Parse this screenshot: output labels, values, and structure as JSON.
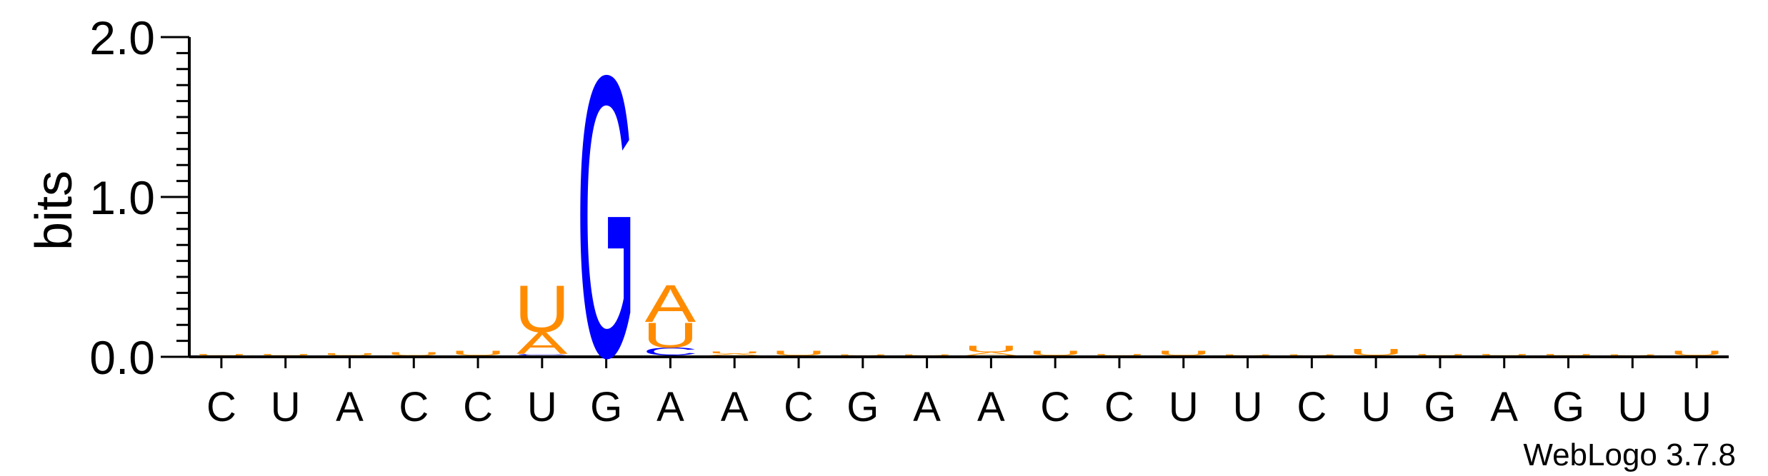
{
  "chart_data": {
    "type": "sequence_logo",
    "ylabel": "bits",
    "ylim": [
      0,
      2.0
    ],
    "yticks": [
      "0.0",
      "1.0",
      "2.0"
    ],
    "positions": [
      "C",
      "U",
      "A",
      "C",
      "C",
      "U",
      "G",
      "A",
      "A",
      "C",
      "G",
      "A",
      "A",
      "C",
      "C",
      "U",
      "U",
      "C",
      "U",
      "G",
      "A",
      "G",
      "U",
      "U"
    ],
    "stacks": [
      {
        "letters": [
          {
            "l": "U",
            "h": 0.008
          }
        ]
      },
      {
        "letters": [
          {
            "l": "U",
            "h": 0.01
          }
        ]
      },
      {
        "letters": [
          {
            "l": "U",
            "h": 0.015
          }
        ]
      },
      {
        "letters": [
          {
            "l": "U",
            "h": 0.02
          }
        ]
      },
      {
        "letters": [
          {
            "l": "U",
            "h": 0.03
          }
        ]
      },
      {
        "letters": [
          {
            "l": "C",
            "h": 0.008
          },
          {
            "l": "A",
            "h": 0.14
          },
          {
            "l": "U",
            "h": 0.3
          }
        ]
      },
      {
        "letters": [
          {
            "l": "G",
            "h": 1.81
          }
        ]
      },
      {
        "letters": [
          {
            "l": "C",
            "h": 0.05
          },
          {
            "l": "U",
            "h": 0.16
          },
          {
            "l": "A",
            "h": 0.24
          }
        ]
      },
      {
        "letters": [
          {
            "l": "A",
            "h": 0.012
          },
          {
            "l": "U",
            "h": 0.015
          }
        ]
      },
      {
        "letters": [
          {
            "l": "U",
            "h": 0.03
          }
        ]
      },
      {
        "letters": [
          {
            "l": "U",
            "h": 0.005
          }
        ]
      },
      {
        "letters": [
          {
            "l": "U",
            "h": 0.005
          }
        ]
      },
      {
        "letters": [
          {
            "l": "A",
            "h": 0.02
          },
          {
            "l": "U",
            "h": 0.04
          }
        ]
      },
      {
        "letters": [
          {
            "l": "U",
            "h": 0.03
          }
        ]
      },
      {
        "letters": [
          {
            "l": "U",
            "h": 0.008
          }
        ]
      },
      {
        "letters": [
          {
            "l": "U",
            "h": 0.03
          }
        ]
      },
      {
        "letters": [
          {
            "l": "U",
            "h": 0.005
          }
        ]
      },
      {
        "letters": [
          {
            "l": "U",
            "h": 0.005
          }
        ]
      },
      {
        "letters": [
          {
            "l": "U",
            "h": 0.04
          }
        ]
      },
      {
        "letters": [
          {
            "l": "U",
            "h": 0.01
          }
        ]
      },
      {
        "letters": [
          {
            "l": "U",
            "h": 0.008
          }
        ]
      },
      {
        "letters": [
          {
            "l": "U",
            "h": 0.008
          }
        ]
      },
      {
        "letters": [
          {
            "l": "U",
            "h": 0.005
          }
        ]
      },
      {
        "letters": [
          {
            "l": "U",
            "h": 0.03
          }
        ]
      }
    ],
    "colors": {
      "A": "#ff8c00",
      "U": "#ff8c00",
      "G": "#0000ff",
      "C": "#0000ff",
      "axis": "#000000"
    },
    "credit": "WebLogo 3.7.8"
  }
}
